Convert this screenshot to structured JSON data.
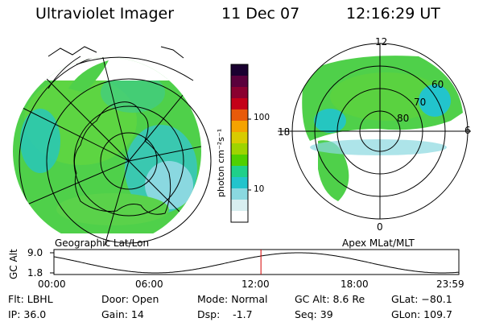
{
  "header": {
    "instrument": "Ultraviolet Imager",
    "date": "11 Dec 07",
    "time": "12:16:29 UT"
  },
  "colorbar": {
    "label": "photon cm⁻²s⁻¹",
    "ticks": [
      "100",
      "10"
    ],
    "scale": "log",
    "colors": [
      "#1a0030",
      "#5a003c",
      "#8a0030",
      "#c40018",
      "#e85a0a",
      "#f5a300",
      "#d8cc00",
      "#9ed400",
      "#4fd000",
      "#1fd08a",
      "#22c4cc",
      "#8ad8e0",
      "#d8eef0",
      "#ffffff"
    ]
  },
  "panels": {
    "left_label": "Geographic Lat/Lon",
    "right_label": "Apex MLat/MLT",
    "polar_mlt_labels": {
      "top": "12",
      "right": "6",
      "bottom": "0",
      "left": "18"
    },
    "polar_lat_labels": [
      "60",
      "70",
      "80"
    ]
  },
  "altitude_plot": {
    "ylabel": "GC Alt",
    "yticks": [
      "9.0",
      "1.8"
    ],
    "xticks": [
      "00:00",
      "06:00",
      "12:00",
      "18:00",
      "23:59"
    ],
    "marker_time_hours": 12.27,
    "marker_color": "#d40000"
  },
  "info": {
    "flt": "Flt: LBHL",
    "ip": "IP: 36.0",
    "door": "Door: Open",
    "gain": "Gain: 14",
    "mode": "Mode: Normal",
    "dsp": "Dsp:    -1.7",
    "gcalt": "GC Alt: 8.6 Re",
    "seq": "Seq: 39",
    "glat": "GLat: −80.1",
    "glon": "GLon: 109.7"
  }
}
